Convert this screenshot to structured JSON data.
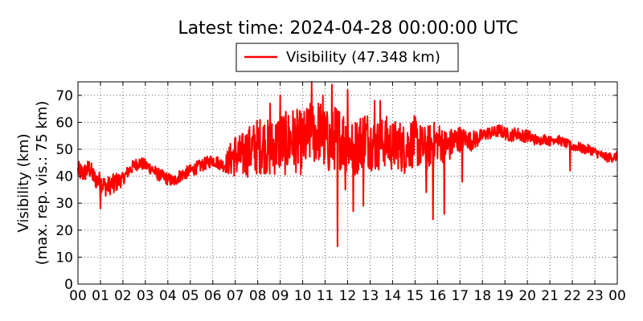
{
  "chart_data": {
    "type": "line",
    "title": "Latest time: 2024-04-28 00:00:00 UTC",
    "ylabel": "Visibility (km)",
    "ylabel2": "(max. rep. vis.: 75 km)",
    "xlabel": "",
    "ylim": [
      0,
      75
    ],
    "xlim": [
      0,
      24
    ],
    "yticks": [
      "0",
      "10",
      "20",
      "30",
      "40",
      "50",
      "60",
      "70"
    ],
    "xticks": [
      "00",
      "01",
      "02",
      "03",
      "04",
      "05",
      "06",
      "07",
      "08",
      "09",
      "10",
      "11",
      "12",
      "13",
      "14",
      "15",
      "16",
      "17",
      "18",
      "19",
      "20",
      "21",
      "22",
      "23",
      "00"
    ],
    "grid": true,
    "legend_position": "top-center",
    "series": [
      {
        "name": "Visibility (47.348 km)",
        "color": "#ff0000",
        "x": [
          0,
          0.25,
          0.5,
          0.75,
          1,
          1.25,
          1.5,
          1.75,
          2,
          2.25,
          2.5,
          2.75,
          3,
          3.25,
          3.5,
          3.75,
          4,
          4.25,
          4.5,
          4.75,
          5,
          5.25,
          5.5,
          5.75,
          6,
          6.25,
          6.5,
          6.75,
          7,
          7.25,
          7.5,
          7.75,
          8,
          8.25,
          8.5,
          8.75,
          9,
          9.25,
          9.5,
          9.75,
          10,
          10.25,
          10.5,
          10.75,
          11,
          11.25,
          11.5,
          11.75,
          12,
          12.25,
          12.5,
          12.75,
          13,
          13.25,
          13.5,
          13.75,
          14,
          14.25,
          14.5,
          14.75,
          15,
          15.25,
          15.5,
          15.75,
          16,
          16.25,
          16.5,
          16.75,
          17,
          17.25,
          17.5,
          17.75,
          18,
          18.25,
          18.5,
          18.75,
          19,
          19.25,
          19.5,
          19.75,
          20,
          20.25,
          20.5,
          20.75,
          21,
          21.25,
          21.5,
          21.75,
          22,
          22.25,
          22.5,
          22.75,
          23,
          23.25,
          23.5,
          23.75,
          24
        ],
        "values": [
          42,
          41,
          43,
          39,
          38,
          36,
          37,
          38,
          39,
          42,
          44,
          45,
          44,
          43,
          41,
          40,
          39,
          38,
          40,
          41,
          42,
          43,
          44,
          45,
          46,
          45,
          44,
          46,
          48,
          47,
          49,
          50,
          51,
          52,
          50,
          51,
          53,
          52,
          54,
          53,
          52,
          55,
          56,
          57,
          53,
          52,
          55,
          54,
          53,
          50,
          52,
          55,
          53,
          51,
          52,
          53,
          51,
          52,
          50,
          52,
          53,
          51,
          50,
          52,
          53,
          52,
          51,
          53,
          54,
          54,
          53,
          54,
          55,
          56,
          56,
          57,
          56,
          55,
          56,
          55,
          55,
          54,
          53,
          54,
          53,
          54,
          53,
          52,
          51,
          51,
          50,
          50,
          49,
          48,
          47,
          47,
          47.348
        ],
        "noise_amplitude": [
          3,
          3,
          3,
          3,
          3,
          3,
          3,
          3,
          2,
          2,
          2,
          2,
          2,
          2,
          2,
          2,
          2,
          2,
          2,
          2,
          2,
          2,
          2,
          2,
          2,
          2,
          2,
          5,
          7,
          7,
          8,
          8,
          9,
          9,
          9,
          9,
          10,
          10,
          10,
          10,
          10,
          10,
          10,
          10,
          10,
          10,
          10,
          10,
          10,
          9,
          9,
          9,
          9,
          8,
          8,
          8,
          8,
          8,
          8,
          8,
          8,
          7,
          7,
          7,
          6,
          6,
          5,
          5,
          4,
          3,
          3,
          3,
          2,
          2,
          2,
          2,
          2,
          2,
          2,
          2,
          2,
          2,
          1.5,
          1.5,
          1.5,
          1.5,
          1.5,
          1.5,
          1.5,
          1.5,
          1.5,
          1.5,
          1.5,
          1.5,
          1.5,
          1.5,
          1.5
        ],
        "spikes": [
          {
            "x": 1.0,
            "y": 28
          },
          {
            "x": 1.6,
            "y": 34
          },
          {
            "x": 8.55,
            "y": 67
          },
          {
            "x": 9.0,
            "y": 70
          },
          {
            "x": 10.4,
            "y": 75
          },
          {
            "x": 10.9,
            "y": 70
          },
          {
            "x": 11.3,
            "y": 74
          },
          {
            "x": 11.55,
            "y": 14
          },
          {
            "x": 11.9,
            "y": 35
          },
          {
            "x": 12.0,
            "y": 72
          },
          {
            "x": 12.25,
            "y": 27
          },
          {
            "x": 12.7,
            "y": 29
          },
          {
            "x": 13.2,
            "y": 68
          },
          {
            "x": 13.45,
            "y": 68
          },
          {
            "x": 15.5,
            "y": 34
          },
          {
            "x": 15.8,
            "y": 24
          },
          {
            "x": 16.3,
            "y": 26
          },
          {
            "x": 17.1,
            "y": 38
          },
          {
            "x": 21.9,
            "y": 42
          }
        ]
      }
    ]
  }
}
